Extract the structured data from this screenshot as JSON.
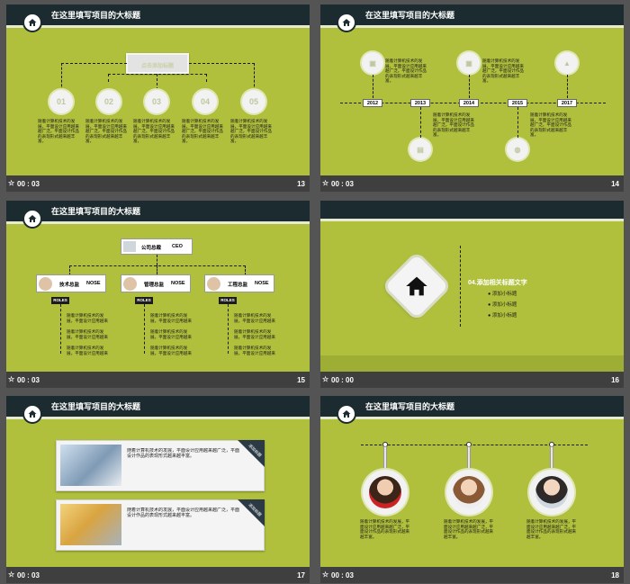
{
  "header_title": "在这里填写项目的大标题",
  "body_text": "随着计算机技术的发展，平面设计应用越来越广泛，平面设计作品的表现形式越来越丰富。",
  "slides": [
    {
      "time": "00 : 03",
      "number": "13"
    },
    {
      "time": "00 : 03",
      "number": "14"
    },
    {
      "time": "00 : 03",
      "number": "15"
    },
    {
      "time": "00 : 00",
      "number": "16"
    },
    {
      "time": "00 : 03",
      "number": "17"
    },
    {
      "time": "00 : 03",
      "number": "18"
    }
  ],
  "s13": {
    "top_label": "点击添加标题",
    "nodes": [
      "01",
      "02",
      "03",
      "04",
      "05"
    ]
  },
  "s14": {
    "years": [
      "2012",
      "2013",
      "2014",
      "2015",
      "2017"
    ]
  },
  "s15": {
    "ceo_title": "公司总裁",
    "ceo_role": "CEO",
    "managers": [
      {
        "title": "技术总监",
        "role": "NOSE"
      },
      {
        "title": "管理总监",
        "role": "NOSE"
      },
      {
        "title": "工程总监",
        "role": "NOSE"
      }
    ],
    "roles_label": "ROLES"
  },
  "s16": {
    "heading": "04.添加相关标题文字",
    "items": [
      "添加小标题",
      "添加小标题",
      "添加小标题"
    ]
  },
  "s17": {
    "ribbon": "添加标题"
  },
  "colors": {
    "slide_bg": "#b0c03d",
    "header_bg": "#1c2b2f",
    "footer_bg": "#3f3f3f"
  }
}
